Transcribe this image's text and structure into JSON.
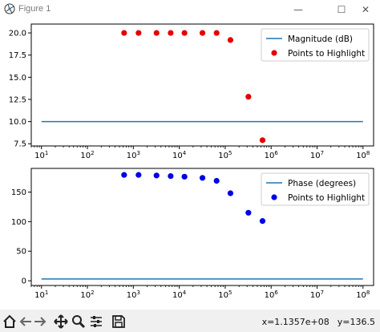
{
  "window": {
    "title": "Figure 1",
    "minimize_glyph": "—",
    "maximize_glyph": "☐",
    "close_glyph": "✕"
  },
  "toolbar": {
    "icons": [
      "home-icon",
      "back-arrow-icon",
      "forward-arrow-icon",
      "pan-icon",
      "zoom-icon",
      "configure-subplots-icon",
      "save-icon"
    ],
    "x_readout": "x=1.1357e+08",
    "y_readout": "y=136.5"
  },
  "colors": {
    "line": "#1f77b4",
    "top_points": "#e60000",
    "bottom_points": "#0000e6"
  },
  "chart_data": [
    {
      "type": "line",
      "x_scale": "log",
      "xlim": [
        6,
        170000000
      ],
      "ylim": [
        7.25,
        21.0
      ],
      "xticks": [
        {
          "value": 10,
          "base": "10",
          "exp": "1"
        },
        {
          "value": 100,
          "base": "10",
          "exp": "2"
        },
        {
          "value": 1000,
          "base": "10",
          "exp": "3"
        },
        {
          "value": 10000,
          "base": "10",
          "exp": "4"
        },
        {
          "value": 100000,
          "base": "10",
          "exp": "5"
        },
        {
          "value": 1000000,
          "base": "10",
          "exp": "6"
        },
        {
          "value": 10000000,
          "base": "10",
          "exp": "7"
        },
        {
          "value": 100000000,
          "base": "10",
          "exp": "8"
        }
      ],
      "yticks": [
        "7.5",
        "10.0",
        "12.5",
        "15.0",
        "17.5",
        "20.0"
      ],
      "grid": false,
      "legend_position": "top-right",
      "series": [
        {
          "name": "Magnitude (dB)",
          "kind": "line",
          "x": [
            10,
            100000000
          ],
          "y": [
            10.0,
            10.0
          ]
        },
        {
          "name": "Points to Highlight",
          "kind": "scatter",
          "x": [
            630,
            1300,
            3200,
            6500,
            13000,
            32000,
            65000,
            130000,
            320000,
            650000
          ],
          "y": [
            20.0,
            20.0,
            20.0,
            20.0,
            20.0,
            20.0,
            20.0,
            19.2,
            12.8,
            7.9
          ]
        }
      ]
    },
    {
      "type": "line",
      "x_scale": "log",
      "xlim": [
        6,
        170000000
      ],
      "ylim": [
        -8,
        190
      ],
      "xticks": [
        {
          "value": 10,
          "base": "10",
          "exp": "1"
        },
        {
          "value": 100,
          "base": "10",
          "exp": "2"
        },
        {
          "value": 1000,
          "base": "10",
          "exp": "3"
        },
        {
          "value": 10000,
          "base": "10",
          "exp": "4"
        },
        {
          "value": 100000,
          "base": "10",
          "exp": "5"
        },
        {
          "value": 1000000,
          "base": "10",
          "exp": "6"
        },
        {
          "value": 10000000,
          "base": "10",
          "exp": "7"
        },
        {
          "value": 100000000,
          "base": "10",
          "exp": "8"
        }
      ],
      "yticks": [
        "0",
        "50",
        "100",
        "150"
      ],
      "grid": false,
      "legend_position": "top-right",
      "series": [
        {
          "name": "Phase (degrees)",
          "kind": "line",
          "x": [
            10,
            100000000
          ],
          "y": [
            3,
            3
          ]
        },
        {
          "name": "Points to Highlight",
          "kind": "scatter",
          "x": [
            630,
            1300,
            3200,
            6500,
            13000,
            32000,
            65000,
            130000,
            320000,
            650000
          ],
          "y": [
            179,
            179,
            178,
            177,
            176,
            174,
            169,
            148,
            115,
            101
          ]
        }
      ]
    }
  ]
}
